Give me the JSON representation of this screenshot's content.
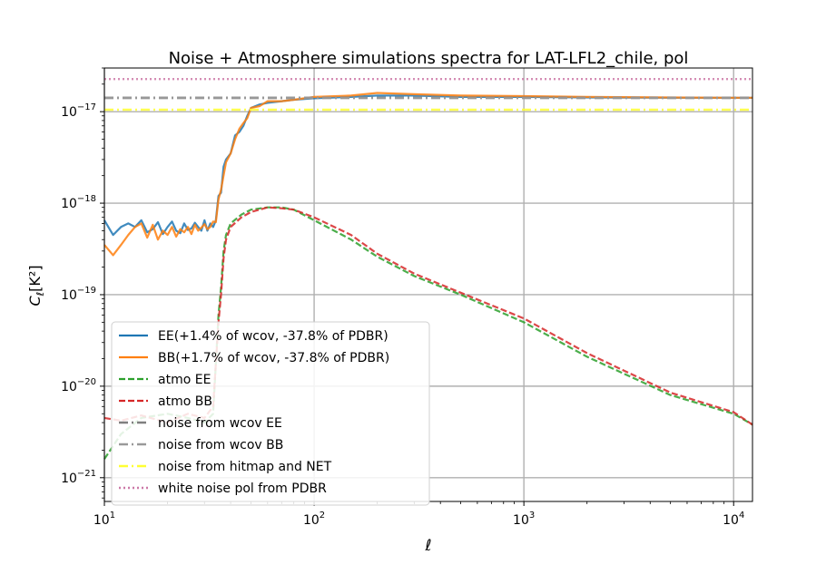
{
  "chart_data": {
    "type": "line",
    "title": "Noise + Atmosphere simulations spectra for LAT-LFL2_chile, pol",
    "xlabel": "ℓ",
    "ylabel_main": "C",
    "ylabel_sub": "ℓ",
    "ylabel_bracket": "[K²]",
    "xscale": "log",
    "yscale": "log",
    "xlim": [
      10,
      12300
    ],
    "ylim": [
      5.5e-22,
      3e-17
    ],
    "grid": true,
    "legend_position": "lower-left",
    "x_ticks": [
      {
        "value": 10,
        "base": "10",
        "exp": "1"
      },
      {
        "value": 100,
        "base": "10",
        "exp": "2"
      },
      {
        "value": 1000,
        "base": "10",
        "exp": "3"
      },
      {
        "value": 10000,
        "base": "10",
        "exp": "4"
      }
    ],
    "y_ticks": [
      {
        "value": 1e-21,
        "base": "10",
        "exp": "−21"
      },
      {
        "value": 1e-20,
        "base": "10",
        "exp": "−20"
      },
      {
        "value": 1e-19,
        "base": "10",
        "exp": "−19"
      },
      {
        "value": 1e-18,
        "base": "10",
        "exp": "−18"
      },
      {
        "value": 1e-17,
        "base": "10",
        "exp": "−17"
      }
    ],
    "series": [
      {
        "name": "EE(+1.4% of wcov, -37.8% of PDBR)",
        "color": "#1f77b4",
        "style": "solid",
        "x": [
          10,
          11,
          12,
          13,
          14,
          15,
          16,
          17,
          18,
          19,
          20,
          21,
          22,
          23,
          24,
          25,
          26,
          27,
          28,
          29,
          30,
          31,
          32,
          33,
          34,
          35,
          36,
          37,
          38,
          40,
          42,
          44,
          46,
          48,
          50,
          55,
          60,
          70,
          80,
          100,
          150,
          200,
          300,
          500,
          1000,
          2000,
          5000,
          10000,
          12300
        ],
        "y": [
          6.5e-19,
          4.5e-19,
          5.5e-19,
          6e-19,
          5.5e-19,
          6.5e-19,
          4.8e-19,
          5.2e-19,
          6.2e-19,
          4.6e-19,
          5.5e-19,
          6.3e-19,
          5e-19,
          4.7e-19,
          6e-19,
          5.1e-19,
          5.3e-19,
          6.1e-19,
          5.5e-19,
          5e-19,
          6.5e-19,
          5e-19,
          6e-19,
          5.5e-19,
          6.5e-19,
          1.2e-18,
          1.3e-18,
          2.5e-18,
          3e-18,
          3.5e-18,
          5.5e-18,
          6e-18,
          7e-18,
          9e-18,
          1.1e-17,
          1.2e-17,
          1.25e-17,
          1.3e-17,
          1.35e-17,
          1.4e-17,
          1.45e-17,
          1.5e-17,
          1.5e-17,
          1.45e-17,
          1.45e-17,
          1.43e-17,
          1.42e-17,
          1.42e-17,
          1.42e-17
        ]
      },
      {
        "name": "BB(+1.7% of wcov, -37.8% of PDBR)",
        "color": "#ff7f0e",
        "style": "solid",
        "x": [
          10,
          11,
          12,
          13,
          14,
          15,
          16,
          17,
          18,
          19,
          20,
          21,
          22,
          23,
          24,
          25,
          26,
          27,
          28,
          29,
          30,
          31,
          32,
          33,
          34,
          35,
          36,
          37,
          38,
          40,
          42,
          44,
          46,
          48,
          50,
          55,
          60,
          70,
          80,
          100,
          150,
          200,
          300,
          500,
          1000,
          2000,
          5000,
          10000,
          12300
        ],
        "y": [
          3.5e-19,
          2.7e-19,
          3.5e-19,
          4.5e-19,
          5.5e-19,
          6e-19,
          4.2e-19,
          5.8e-19,
          4e-19,
          5e-19,
          4.5e-19,
          5.5e-19,
          4.3e-19,
          5.2e-19,
          4.8e-19,
          5.5e-19,
          4.6e-19,
          5.8e-19,
          5e-19,
          5.4e-19,
          5.9e-19,
          5.2e-19,
          5.5e-19,
          6.3e-19,
          6.2e-19,
          1.1e-18,
          1.4e-18,
          2e-18,
          2.8e-18,
          3.5e-18,
          5e-18,
          6.5e-18,
          7.5e-18,
          8.5e-18,
          1.1e-17,
          1.15e-17,
          1.3e-17,
          1.3e-17,
          1.35e-17,
          1.45e-17,
          1.5e-17,
          1.6e-17,
          1.55e-17,
          1.5e-17,
          1.48e-17,
          1.45e-17,
          1.43e-17,
          1.42e-17,
          1.42e-17
        ]
      },
      {
        "name": "atmo EE",
        "color": "#2ca02c",
        "style": "dashed",
        "x": [
          10,
          12,
          15,
          20,
          25,
          30,
          33,
          35,
          36,
          37,
          38,
          40,
          45,
          50,
          60,
          70,
          80,
          100,
          150,
          200,
          300,
          500,
          1000,
          2000,
          5000,
          10000,
          12300
        ],
        "y": [
          1.6e-21,
          3e-21,
          4.5e-21,
          5e-21,
          4.5e-21,
          4e-21,
          5e-21,
          6e-20,
          1.2e-19,
          3e-19,
          4.5e-19,
          6e-19,
          7.5e-19,
          8.5e-19,
          9e-19,
          9e-19,
          8.5e-19,
          6.5e-19,
          4e-19,
          2.6e-19,
          1.6e-19,
          1e-19,
          5e-20,
          2.1e-20,
          8e-21,
          5e-21,
          3.8e-21
        ]
      },
      {
        "name": "atmo BB",
        "color": "#d62728",
        "style": "dashed",
        "x": [
          10,
          12,
          15,
          20,
          25,
          30,
          33,
          35,
          36,
          37,
          38,
          40,
          45,
          50,
          60,
          70,
          80,
          100,
          150,
          200,
          300,
          500,
          1000,
          2000,
          5000,
          10000,
          12300
        ],
        "y": [
          4.5e-21,
          4.2e-21,
          4.8e-21,
          4e-21,
          5e-21,
          4.5e-21,
          6e-21,
          5e-20,
          1e-19,
          2.5e-19,
          4e-19,
          5.5e-19,
          7e-19,
          8e-19,
          9e-19,
          8.8e-19,
          8.5e-19,
          7e-19,
          4.5e-19,
          2.8e-19,
          1.7e-19,
          1.05e-19,
          5.5e-20,
          2.3e-20,
          8.5e-21,
          5.2e-21,
          3.8e-21
        ]
      },
      {
        "name": "noise from wcov EE",
        "color": "#7f7f7f",
        "style": "dashdot",
        "x": [
          10,
          12300
        ],
        "y": [
          1.42e-17,
          1.42e-17
        ]
      },
      {
        "name": "noise from wcov BB",
        "color": "#999999",
        "style": "dashdot",
        "x": [
          10,
          12300
        ],
        "y": [
          1.41e-17,
          1.41e-17
        ]
      },
      {
        "name": "noise from hitmap and NET",
        "color": "#ffff33",
        "style": "dashdot",
        "x": [
          10,
          12300
        ],
        "y": [
          1.05e-17,
          1.05e-17
        ]
      },
      {
        "name": "white noise pol from PDBR",
        "color": "#cc79a7",
        "style": "dotted",
        "x": [
          10,
          12300
        ],
        "y": [
          2.27e-17,
          2.27e-17
        ]
      }
    ]
  }
}
